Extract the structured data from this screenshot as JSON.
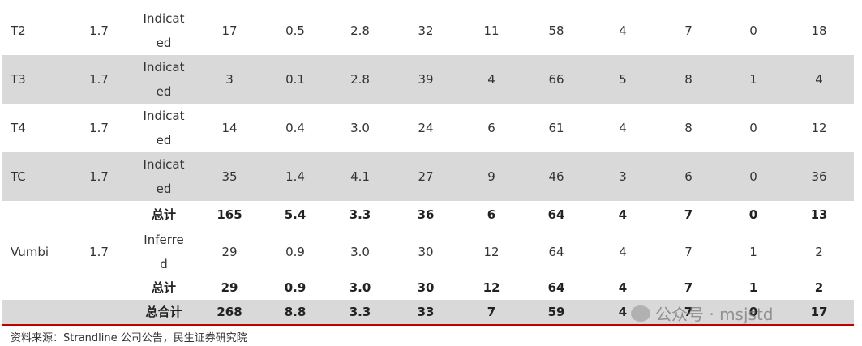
{
  "table": {
    "rows": [
      {
        "cells": [
          "T2",
          "1.7",
          "Indicated",
          "17",
          "0.5",
          "2.8",
          "32",
          "11",
          "58",
          "4",
          "7",
          "0",
          "18"
        ],
        "shaded": false,
        "bold": false
      },
      {
        "cells": [
          "T3",
          "1.7",
          "Indicated",
          "3",
          "0.1",
          "2.8",
          "39",
          "4",
          "66",
          "5",
          "8",
          "1",
          "4"
        ],
        "shaded": true,
        "bold": false
      },
      {
        "cells": [
          "T4",
          "1.7",
          "Indicated",
          "14",
          "0.4",
          "3.0",
          "24",
          "6",
          "61",
          "4",
          "8",
          "0",
          "12"
        ],
        "shaded": false,
        "bold": false
      },
      {
        "cells": [
          "TC",
          "1.7",
          "Indicated",
          "35",
          "1.4",
          "4.1",
          "27",
          "9",
          "46",
          "3",
          "6",
          "0",
          "36"
        ],
        "shaded": true,
        "bold": false
      },
      {
        "cells": [
          null,
          null,
          "总计",
          "165",
          "5.4",
          "3.3",
          "36",
          "6",
          "64",
          "4",
          "7",
          "0",
          "13"
        ],
        "shaded": false,
        "bold": true
      },
      {
        "cells": [
          "Vumbi",
          "1.7",
          "Inferred",
          "29",
          "0.9",
          "3.0",
          "30",
          "12",
          "64",
          "4",
          "7",
          "1",
          "2"
        ],
        "shaded": false,
        "bold": false
      },
      {
        "cells": [
          null,
          null,
          "总计",
          "29",
          "0.9",
          "3.0",
          "30",
          "12",
          "64",
          "4",
          "7",
          "1",
          "2"
        ],
        "shaded": false,
        "bold": true
      },
      {
        "cells": [
          null,
          null,
          "总合计",
          "268",
          "8.8",
          "3.3",
          "33",
          "7",
          "59",
          "4",
          "7",
          "0",
          "17"
        ],
        "shaded": true,
        "bold": true
      }
    ]
  },
  "source": "资料来源：Strandline 公司公告，民生证券研究院",
  "watermark": "公众号 · msjstd"
}
